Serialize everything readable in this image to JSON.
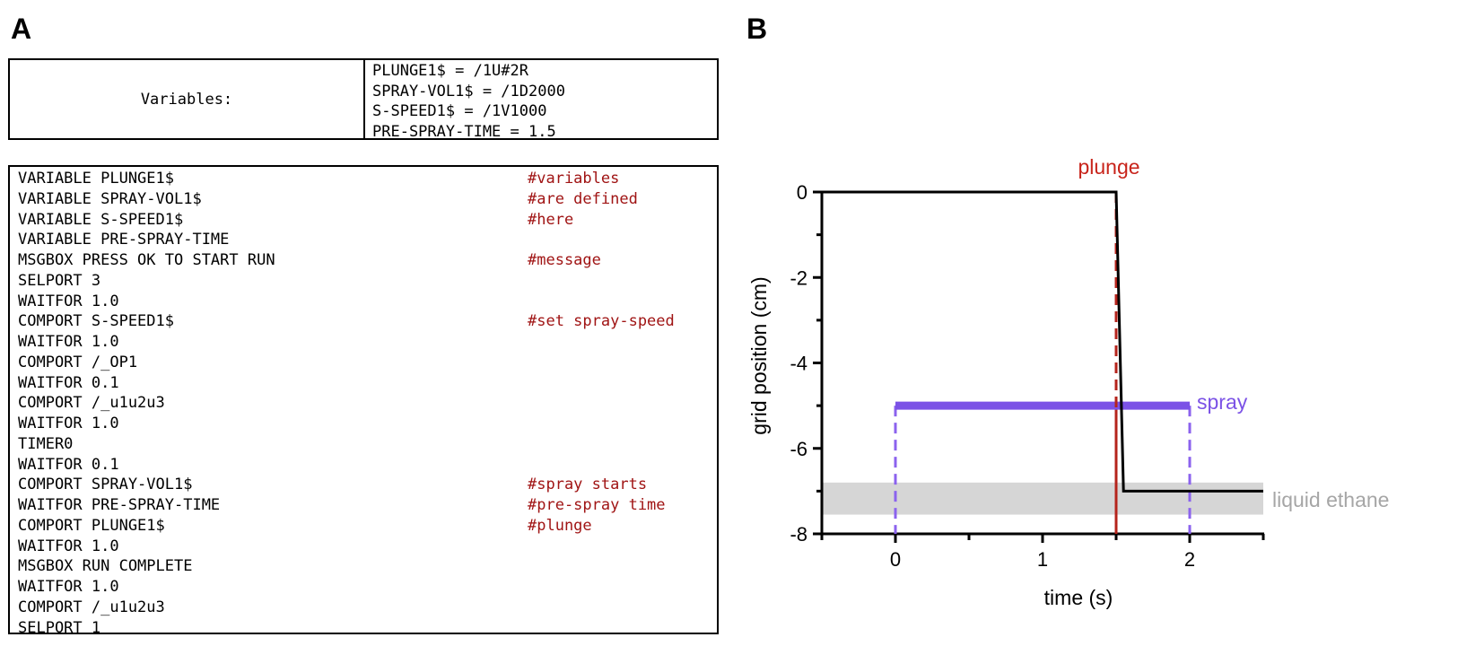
{
  "panel_a": {
    "label": "A",
    "variables_title": "Variables:",
    "variables": [
      "PLUNGE1$ = /1U#2R",
      "SPRAY-VOL1$ = /1D2000",
      "S-SPEED1$ = /1V1000",
      "PRE-SPRAY-TIME = 1.5"
    ],
    "script": [
      {
        "cmd": "VARIABLE PLUNGE1$",
        "comment": "#variables"
      },
      {
        "cmd": "VARIABLE SPRAY-VOL1$",
        "comment": "#are defined"
      },
      {
        "cmd": "VARIABLE S-SPEED1$",
        "comment": "#here"
      },
      {
        "cmd": "VARIABLE PRE-SPRAY-TIME",
        "comment": ""
      },
      {
        "cmd": "MSGBOX PRESS OK TO START RUN",
        "comment": "#message"
      },
      {
        "cmd": "SELPORT 3",
        "comment": ""
      },
      {
        "cmd": "WAITFOR 1.0",
        "comment": ""
      },
      {
        "cmd": "COMPORT S-SPEED1$",
        "comment": "#set spray-speed"
      },
      {
        "cmd": "WAITFOR 1.0",
        "comment": ""
      },
      {
        "cmd": "COMPORT /_OP1",
        "comment": ""
      },
      {
        "cmd": "WAITFOR 0.1",
        "comment": ""
      },
      {
        "cmd": "COMPORT /_u1u2u3",
        "comment": ""
      },
      {
        "cmd": "WAITFOR 1.0",
        "comment": ""
      },
      {
        "cmd": "TIMER0",
        "comment": ""
      },
      {
        "cmd": "WAITFOR 0.1",
        "comment": ""
      },
      {
        "cmd": "COMPORT SPRAY-VOL1$",
        "comment": "#spray starts"
      },
      {
        "cmd": "WAITFOR PRE-SPRAY-TIME",
        "comment": "#pre-spray time"
      },
      {
        "cmd": "COMPORT PLUNGE1$",
        "comment": "#plunge"
      },
      {
        "cmd": "WAITFOR 1.0",
        "comment": ""
      },
      {
        "cmd": "MSGBOX RUN COMPLETE",
        "comment": ""
      },
      {
        "cmd": "WAITFOR 1.0",
        "comment": ""
      },
      {
        "cmd": "COMPORT /_u1u2u3",
        "comment": ""
      },
      {
        "cmd": "SELPORT 1",
        "comment": ""
      }
    ]
  },
  "panel_b": {
    "label": "B"
  },
  "chart_data": {
    "type": "line",
    "xlabel": "time (s)",
    "ylabel": "grid position (cm)",
    "xlim": [
      -0.5,
      2.5
    ],
    "ylim": [
      -8,
      0
    ],
    "x_ticks": [
      0,
      1,
      2
    ],
    "x_minor_ticks": [
      -0.5,
      0.5,
      1.5,
      2.5
    ],
    "y_ticks": [
      0,
      -2,
      -4,
      -6,
      -8
    ],
    "y_minor_ticks": [
      -1,
      -3,
      -5,
      -7
    ],
    "grid": false,
    "series": [
      {
        "name": "plunge",
        "color": "#000000",
        "points": [
          [
            -0.5,
            0
          ],
          [
            1.5,
            0
          ],
          [
            1.55,
            -7
          ],
          [
            2.5,
            -7
          ]
        ]
      },
      {
        "name": "spray",
        "color": "#7b52e6",
        "x_start": 0,
        "x_end": 2,
        "y": -5
      }
    ],
    "markers": [
      {
        "name": "plunge",
        "x": 1.5,
        "color": "#b5241c"
      },
      {
        "name": "spray-start",
        "x": 0,
        "color": "#8b62ee"
      },
      {
        "name": "spray-end",
        "x": 2,
        "color": "#8b62ee"
      }
    ],
    "band": {
      "name": "liquid ethane",
      "y_top": -6.8,
      "y_bottom": -7.55,
      "color": "#d6d6d6"
    },
    "annotations": {
      "plunge": {
        "text": "plunge",
        "color": "#c8241b"
      },
      "spray": {
        "text": "spray",
        "color": "#7b52e6"
      },
      "ethane": {
        "text": "liquid ethane",
        "color": "#a6a6a6"
      }
    }
  }
}
